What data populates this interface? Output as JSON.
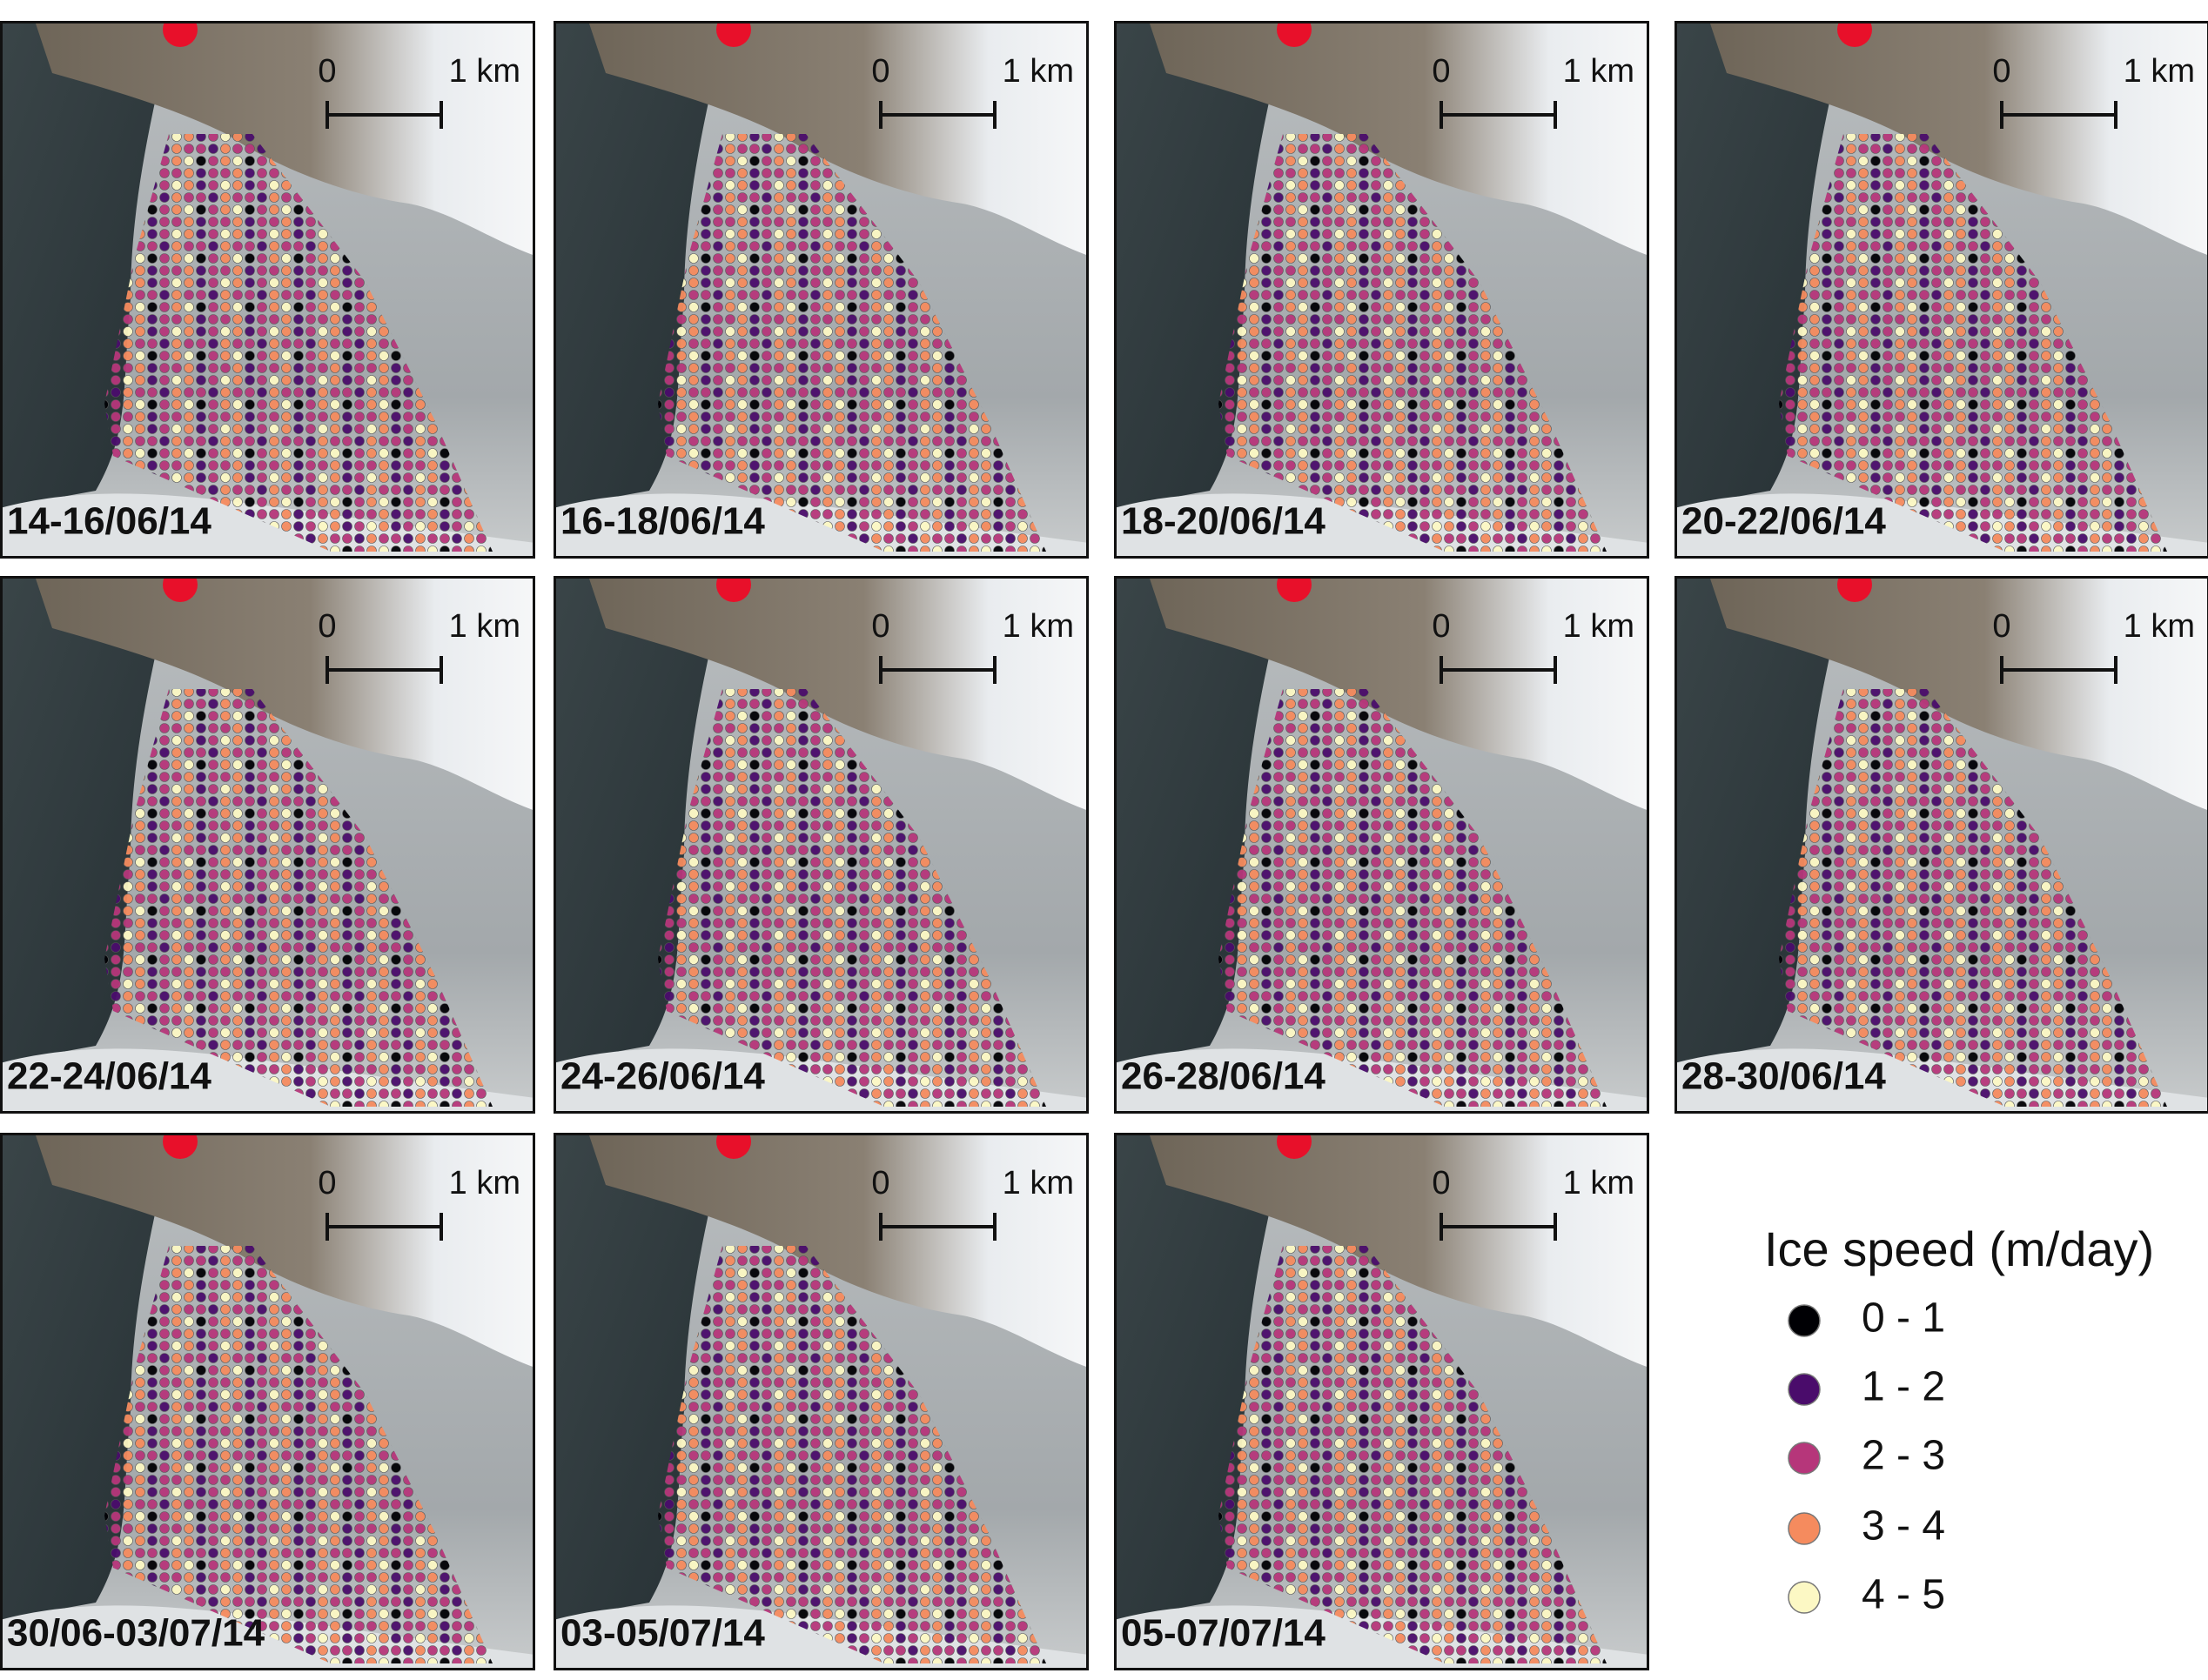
{
  "panels": [
    {
      "label": "14-16/06/14",
      "scale_start": "0",
      "scale_end": "1 km"
    },
    {
      "label": "16-18/06/14",
      "scale_start": "0",
      "scale_end": "1 km"
    },
    {
      "label": "18-20/06/14",
      "scale_start": "0",
      "scale_end": "1 km"
    },
    {
      "label": "20-22/06/14",
      "scale_start": "0",
      "scale_end": "1 km"
    },
    {
      "label": "22-24/06/14",
      "scale_start": "0",
      "scale_end": "1 km"
    },
    {
      "label": "24-26/06/14",
      "scale_start": "0",
      "scale_end": "1 km"
    },
    {
      "label": "26-28/06/14",
      "scale_start": "0",
      "scale_end": "1 km"
    },
    {
      "label": "28-30/06/14",
      "scale_start": "0",
      "scale_end": "1 km"
    },
    {
      "label": "30/06-03/07/14",
      "scale_start": "0",
      "scale_end": "1 km"
    },
    {
      "label": "03-05/07/14",
      "scale_start": "0",
      "scale_end": "1 km"
    },
    {
      "label": "05-07/07/14",
      "scale_start": "0",
      "scale_end": "1 km"
    }
  ],
  "legend": {
    "title": "Ice speed (m/day)",
    "items": [
      {
        "label": "0 - 1",
        "color": "#000004"
      },
      {
        "label": "1 - 2",
        "color": "#4a0c6b"
      },
      {
        "label": "2 - 3",
        "color": "#b6367a"
      },
      {
        "label": "3 - 4",
        "color": "#f58b5e"
      },
      {
        "label": "4 - 5",
        "color": "#fcf8c4"
      }
    ]
  }
}
